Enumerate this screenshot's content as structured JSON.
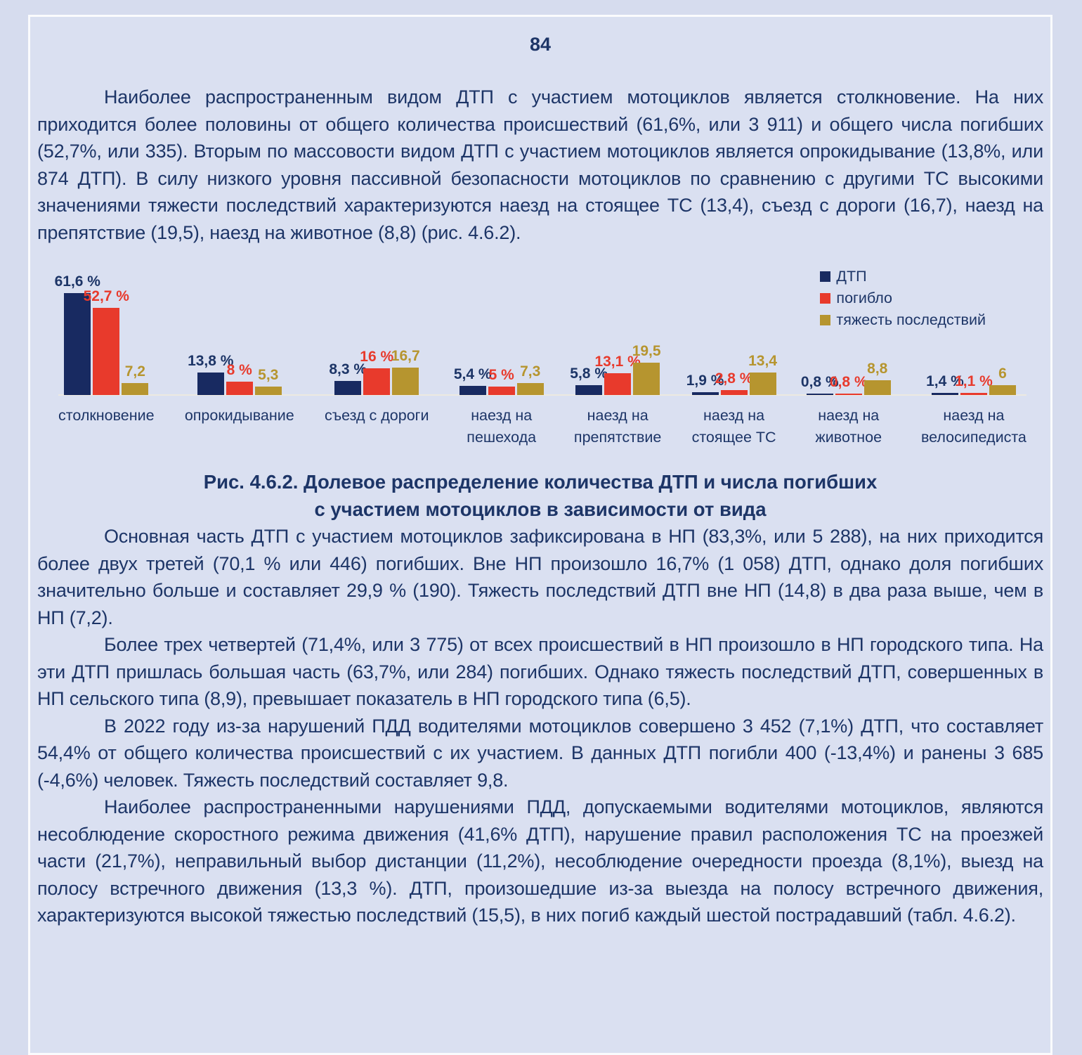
{
  "page": {
    "number": "84"
  },
  "paragraphs": {
    "p1": "Наиболее распространенным видом ДТП с участием мотоциклов является столкновение. На них приходится более половины от общего количества происшествий (61,6%, или 3 911) и общего числа погибших (52,7%, или 335). Вторым по массовости видом ДТП с участием мотоциклов является опрокидывание (13,8%, или 874 ДТП). В силу низкого уровня пассивной безопасности мотоциклов по сравнению с другими ТС высокими значениями тяжести последствий характеризуются наезд на стоящее ТС (13,4), съезд с дороги (16,7), наезд на препятствие (19,5), наезд на животное (8,8) (рис. 4.6.2).",
    "p2": "Основная часть ДТП с участием мотоциклов зафиксирована в НП (83,3%, или 5 288), на них приходится более двух третей (70,1 % или 446) погибших. Вне НП произошло 16,7% (1 058) ДТП, однако доля погибших значительно больше и составляет 29,9 % (190). Тяжесть последствий ДТП вне НП (14,8) в два раза выше, чем в НП (7,2).",
    "p3": "Более трех четвертей (71,4%, или 3 775) от всех происшествий в НП произошло в НП городского типа. На эти ДТП пришлась большая часть (63,7%, или 284) погибших. Однако тяжесть последствий ДТП, совершенных в НП сельского типа (8,9), превышает показатель в НП городского типа (6,5).",
    "p4": "В 2022 году из-за нарушений ПДД водителями мотоциклов совершено 3 452 (7,1%) ДТП, что составляет 54,4% от общего количества происшествий с их участием. В данных ДТП погибли 400 (-13,4%) и ранены 3 685 (-4,6%) человек. Тяжесть последствий составляет 9,8.",
    "p5": "Наиболее распространенными нарушениями ПДД, допускаемыми водителями мотоциклов, являются несоблюдение скоростного режима движения (41,6% ДТП), нарушение правил расположения ТС на проезжей части (21,7%), неправильный выбор дистанции (11,2%), несоблюдение очередности проезда (8,1%), выезд на полосу встречного движения (13,3 %). ДТП, произошедшие из-за выезда на полосу встречного движения, характеризуются высокой тяжестью последствий (15,5), в них погиб каждый шестой пострадавший (табл. 4.6.2)."
  },
  "figure_caption": {
    "line1": "Рис. 4.6.2. Долевое распределение количества ДТП и числа погибших",
    "line2": "с участием мотоциклов в зависимости от вида"
  },
  "chart_data": {
    "type": "bar",
    "title": "Долевое распределение количества ДТП и числа погибших с участием мотоциклов в зависимости от вида",
    "categories": [
      "столкновение",
      "опрокидывание",
      "съезд с дороги",
      "наезд на\nпешехода",
      "наезд на\nпрепятствие",
      "наезд на\nстоящее ТС",
      "наезд на\nживотное",
      "наезд на\nвелосипедиста"
    ],
    "series": [
      {
        "name": "ДТП",
        "color": "#182a61",
        "label_color": "#1d3567",
        "values": [
          61.6,
          13.8,
          8.3,
          5.4,
          5.8,
          1.9,
          0.8,
          1.4
        ],
        "labels": [
          "61,6 %",
          "13,8 %",
          "8,3 %",
          "5,4 %",
          "5,8 %",
          "1,9 %",
          "0,8 %",
          "1,4 %"
        ]
      },
      {
        "name": "погибло",
        "color": "#e83a2c",
        "label_color": "#e83a2c",
        "values": [
          52.7,
          8,
          16,
          5,
          13.1,
          2.8,
          0.8,
          1.1
        ],
        "labels": [
          "52,7 %",
          "8 %",
          "16 %",
          "5 %",
          "13,1 %",
          "2,8 %",
          "0,8 %",
          "1,1 %"
        ]
      },
      {
        "name": "тяжесть последствий",
        "color": "#b6952f",
        "label_color": "#b6952f",
        "values": [
          7.2,
          5.3,
          16.7,
          7.3,
          19.5,
          13.4,
          8.8,
          6
        ],
        "labels": [
          "7,2",
          "5,3",
          "16,7",
          "7,3",
          "19,5",
          "13,4",
          "8,8",
          "6"
        ]
      }
    ],
    "ylim": [
      0,
      65
    ],
    "grid": false,
    "legend_position": "top-right",
    "xlabel": "",
    "ylabel": ""
  },
  "colors": {
    "page_background": "#d6dcee",
    "frame_background": "#dae0f1",
    "frame_border": "#fafbfd",
    "text": "#1d3567",
    "baseline": "#ece9e1"
  }
}
